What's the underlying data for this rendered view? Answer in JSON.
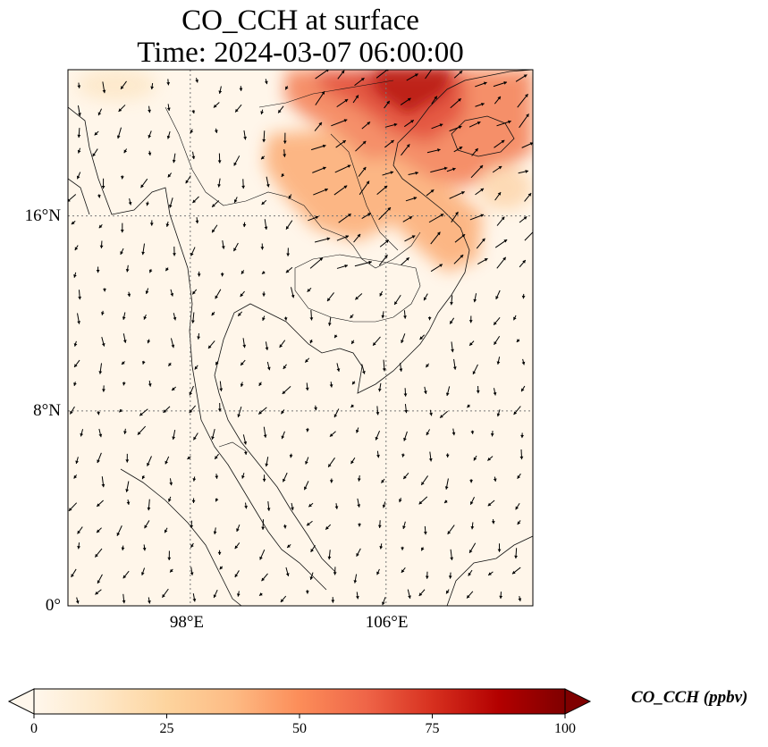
{
  "title": {
    "line1": "CO_CCH at surface",
    "line2": "Time: 2024-03-07 06:00:00"
  },
  "map": {
    "lon_range": [
      93,
      112
    ],
    "lat_range": [
      0,
      22
    ],
    "lon_ticks": [
      {
        "value": 98,
        "label": "98°E"
      },
      {
        "value": 106,
        "label": "106°E"
      }
    ],
    "lat_ticks": [
      {
        "value": 16,
        "label": "16°N"
      },
      {
        "value": 8,
        "label": "8°N"
      },
      {
        "value": 0,
        "label": "0°"
      }
    ],
    "gridlines": "dotted",
    "wind_vectors": "shown",
    "field_max_region": "northern Vietnam / southern China (~104–108°E, 18–22°N)"
  },
  "colorbar": {
    "label": "CO_CCH (ppbv)",
    "min": 0,
    "max": 100,
    "ticks": [
      "0",
      "25",
      "50",
      "75",
      "100"
    ],
    "colormap": "OrRd",
    "extend": "both",
    "colors": [
      "#fff7ec",
      "#fee8c8",
      "#fdd49e",
      "#fdbb84",
      "#fc8d59",
      "#ef6548",
      "#d7301f",
      "#b30000",
      "#7f0000"
    ]
  }
}
